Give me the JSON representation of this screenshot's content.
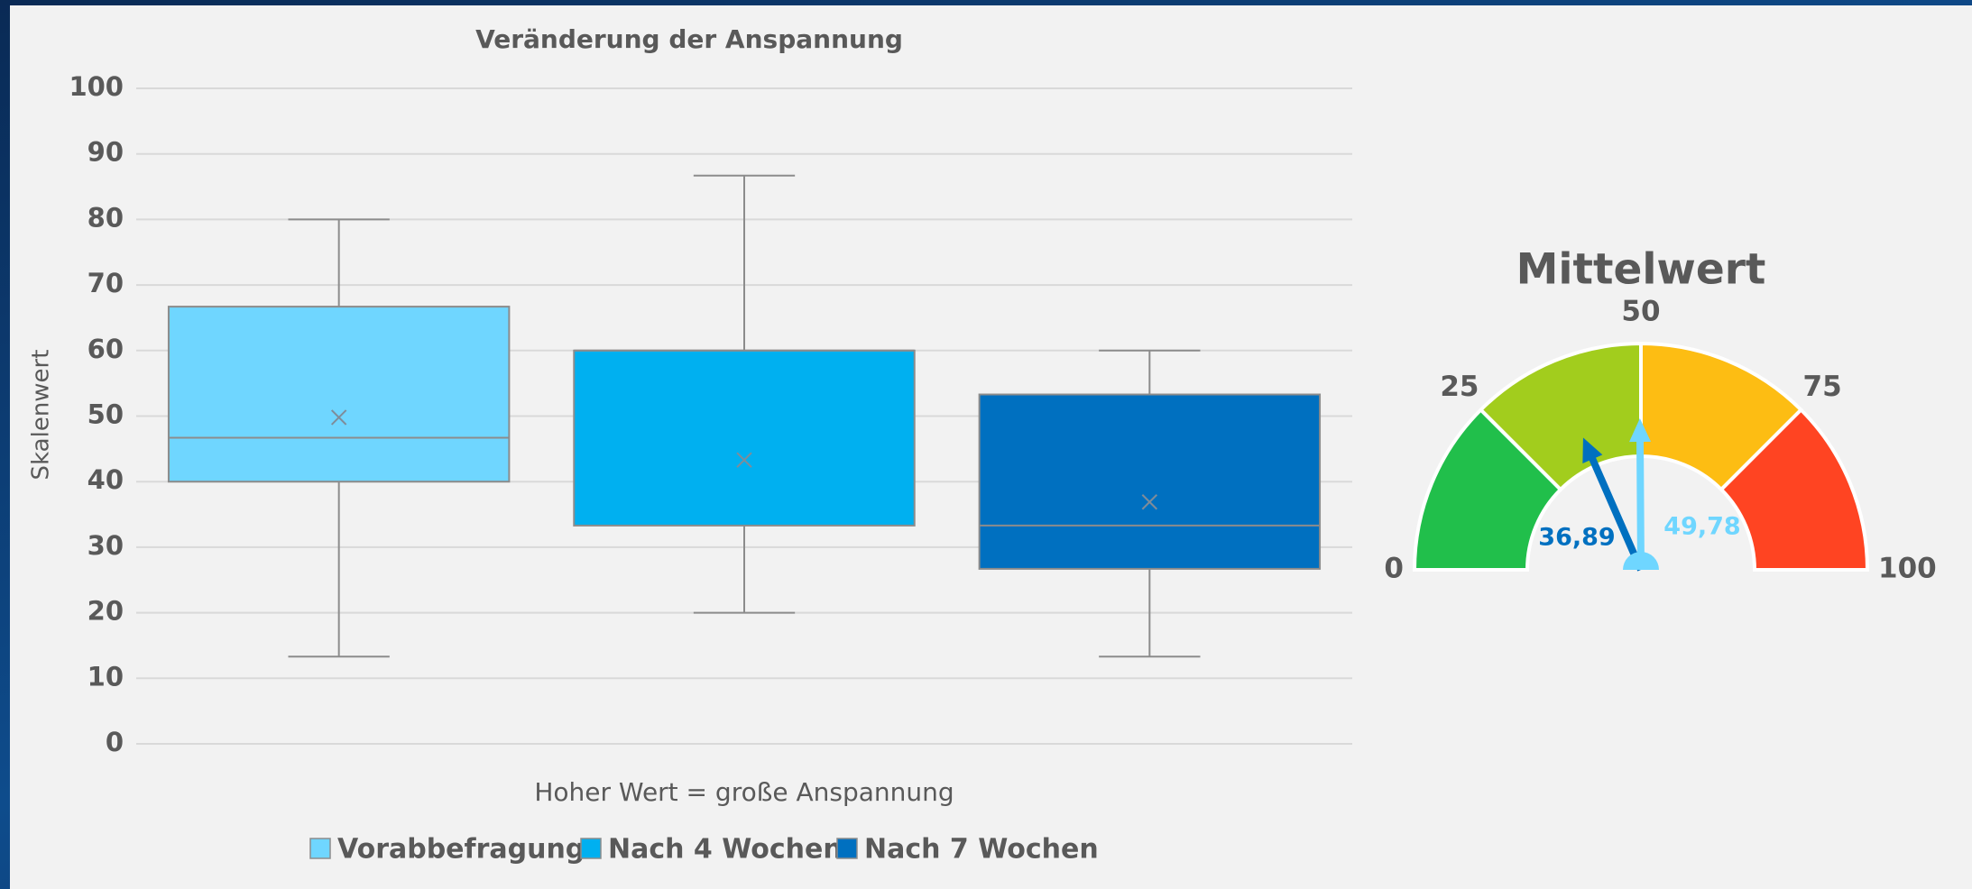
{
  "chart_data": [
    {
      "type": "box",
      "title": "Veränderung der Anspannung",
      "y_label": "Skalenwert",
      "x_label": "Hoher Wert = große Anspannung",
      "ylim": [
        0,
        100
      ],
      "yticks": [
        0,
        10,
        20,
        30,
        40,
        50,
        60,
        70,
        80,
        90,
        100
      ],
      "grid": true,
      "legend": "bottom",
      "series": [
        {
          "name": "Vorabbefragung",
          "color": "#6fd6ff",
          "min": 13.3,
          "q1": 40,
          "median": 46.7,
          "q3": 66.7,
          "max": 80,
          "mean": 49.8
        },
        {
          "name": "Nach 4 Wochen",
          "color": "#00b0f0",
          "min": 20,
          "q1": 33.3,
          "median": 60,
          "q3": 60,
          "max": 86.7,
          "mean": 43.3
        },
        {
          "name": "Nach 7 Wochen",
          "color": "#0070c0",
          "min": 13.3,
          "q1": 26.7,
          "median": 33.3,
          "q3": 53.3,
          "max": 60,
          "mean": 36.9
        }
      ]
    },
    {
      "type": "gauge",
      "title": "Mittelwert",
      "xlim": [
        0,
        100
      ],
      "xticks": [
        0,
        25,
        50,
        75,
        100
      ],
      "band_colors": [
        "#21bf4b",
        "#a2cd1d",
        "#fdbd13",
        "#ff4422"
      ],
      "series": [
        {
          "color": "#0070c0",
          "values": [
            36.89
          ],
          "value_labels": [
            "36,89"
          ]
        },
        {
          "color": "#6fd6ff",
          "values": [
            49.78
          ],
          "value_labels": [
            "49,78"
          ]
        }
      ]
    }
  ]
}
